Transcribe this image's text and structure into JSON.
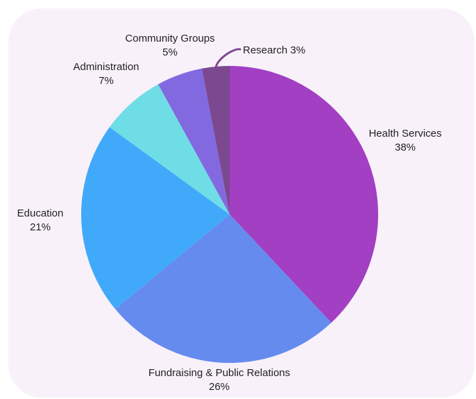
{
  "chart_data": {
    "type": "pie",
    "title": "",
    "slices": [
      {
        "label": "Health Services",
        "value": 38,
        "value_label": "38%",
        "color": "#a23fc2"
      },
      {
        "label": "Fundraising & Public Relations",
        "value": 26,
        "value_label": "26%",
        "color": "#658bef"
      },
      {
        "label": "Education",
        "value": 21,
        "value_label": "21%",
        "color": "#41a9f9"
      },
      {
        "label": "Administration",
        "value": 7,
        "value_label": "7%",
        "color": "#6fdde6"
      },
      {
        "label": "Community Groups",
        "value": 5,
        "value_label": "5%",
        "color": "#8269e0"
      },
      {
        "label": "Research",
        "value": 3,
        "value_label": "3%",
        "color": "#7c4890"
      }
    ],
    "start_angle": "12 o'clock",
    "direction": "clockwise",
    "legend": "none"
  }
}
